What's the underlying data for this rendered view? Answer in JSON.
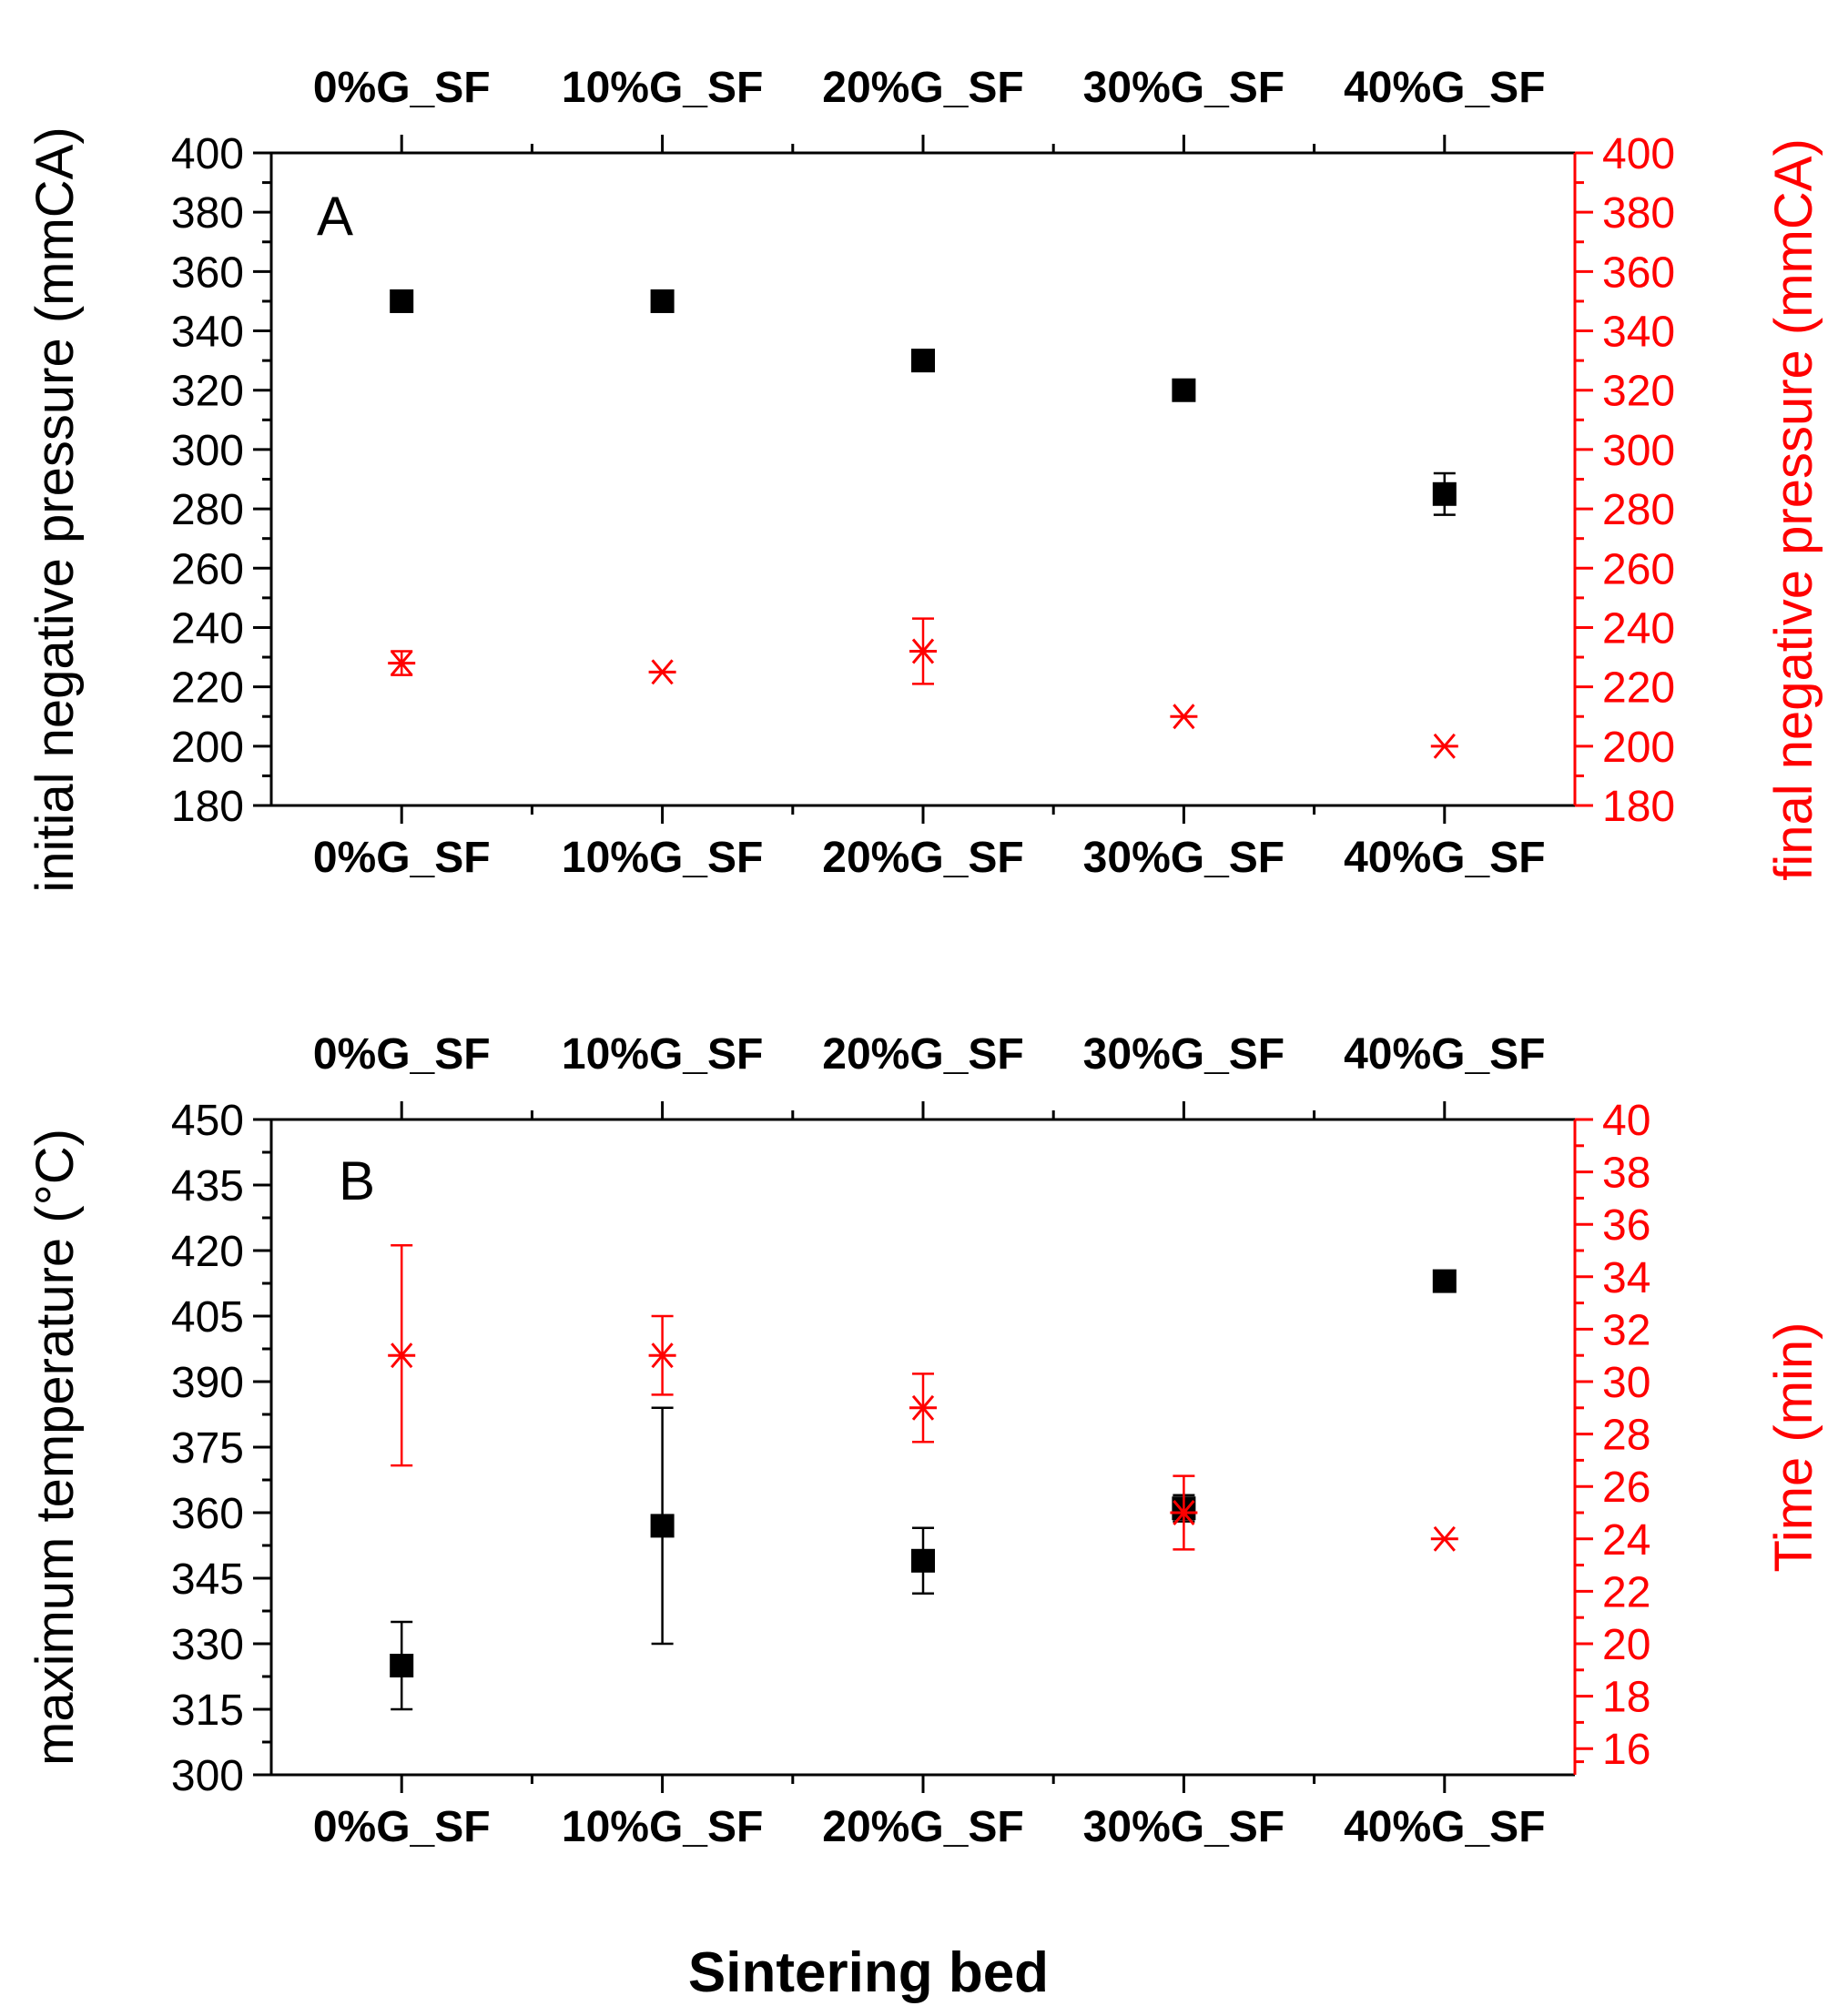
{
  "chart_data": [
    {
      "panel": "A",
      "type": "scatter",
      "categories": [
        "0%G_SF",
        "10%G_SF",
        "20%G_SF",
        "30%G_SF",
        "40%G_SF"
      ],
      "left_axis": {
        "label": "initial negative pressure (mmCA)",
        "range": [
          180,
          400
        ],
        "ticks": [
          180,
          200,
          220,
          240,
          260,
          280,
          300,
          320,
          340,
          360,
          380,
          400
        ],
        "color": "#000000"
      },
      "right_axis": {
        "label": "final negative pressure (mmCA)",
        "range": [
          180,
          400
        ],
        "ticks": [
          180,
          200,
          220,
          240,
          260,
          280,
          300,
          320,
          340,
          360,
          380,
          400
        ],
        "color": "#ff0000"
      },
      "series": [
        {
          "name": "initial negative pressure",
          "axis": "left",
          "marker": "square",
          "color": "#000000",
          "values": [
            350,
            350,
            330,
            320,
            285
          ],
          "errors": [
            0,
            0,
            0,
            0,
            7
          ]
        },
        {
          "name": "final negative pressure",
          "axis": "right",
          "marker": "asterisk",
          "color": "#ff0000",
          "values": [
            228,
            225,
            232,
            210,
            200
          ],
          "errors": [
            4,
            0,
            11,
            0,
            0
          ]
        }
      ]
    },
    {
      "panel": "B",
      "type": "scatter",
      "categories": [
        "0%G_SF",
        "10%G_SF",
        "20%G_SF",
        "30%G_SF",
        "40%G_SF"
      ],
      "left_axis": {
        "label": "maximum temperature (°C)",
        "range": [
          300,
          450
        ],
        "ticks": [
          300,
          315,
          330,
          345,
          360,
          375,
          390,
          405,
          420,
          435,
          450
        ],
        "color": "#000000"
      },
      "right_axis": {
        "label": "Time (min)",
        "range": [
          15,
          40
        ],
        "ticks": [
          16,
          18,
          20,
          22,
          24,
          26,
          28,
          30,
          32,
          34,
          36,
          38,
          40
        ],
        "color": "#ff0000"
      },
      "series": [
        {
          "name": "maximum temperature",
          "axis": "left",
          "marker": "square",
          "color": "#000000",
          "values": [
            325,
            357,
            349,
            361,
            413
          ],
          "errors": [
            10,
            27,
            7.5,
            3,
            0
          ]
        },
        {
          "name": "Time",
          "axis": "right",
          "marker": "asterisk",
          "color": "#ff0000",
          "values": [
            31,
            31,
            29,
            25,
            24
          ],
          "errors": [
            4.2,
            1.5,
            1.3,
            1.4,
            0
          ]
        }
      ]
    }
  ],
  "xlabel": "Sintering bed",
  "colors": {
    "primary": "#000000",
    "secondary": "#ff0000"
  }
}
